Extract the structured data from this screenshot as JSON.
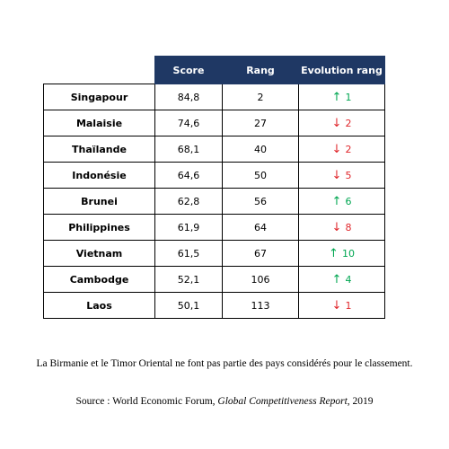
{
  "table": {
    "headers": [
      "Score",
      "Rang",
      "Evolution rang"
    ],
    "rows": [
      {
        "country": "Singapour",
        "score": "84,8",
        "rank": "2",
        "evolution": "1",
        "direction": "up"
      },
      {
        "country": "Malaisie",
        "score": "74,6",
        "rank": "27",
        "evolution": "2",
        "direction": "down"
      },
      {
        "country": "Thaïlande",
        "score": "68,1",
        "rank": "40",
        "evolution": "2",
        "direction": "down"
      },
      {
        "country": "Indonésie",
        "score": "64,6",
        "rank": "50",
        "evolution": "5",
        "direction": "down"
      },
      {
        "country": "Brunei",
        "score": "62,8",
        "rank": "56",
        "evolution": "6",
        "direction": "up"
      },
      {
        "country": "Philippines",
        "score": "61,9",
        "rank": "64",
        "evolution": "8",
        "direction": "down"
      },
      {
        "country": "Vietnam",
        "score": "61,5",
        "rank": "67",
        "evolution": "10",
        "direction": "up"
      },
      {
        "country": "Cambodge",
        "score": "52,1",
        "rank": "106",
        "evolution": "4",
        "direction": "up"
      },
      {
        "country": "Laos",
        "score": "50,1",
        "rank": "113",
        "evolution": "1",
        "direction": "down"
      }
    ]
  },
  "colors": {
    "header_bg": "#1f3864",
    "up": "#00a651",
    "down": "#e0262b"
  },
  "icons": {
    "up": "arrow-up-icon",
    "down": "arrow-down-icon"
  },
  "note": "La Birmanie et le Timor Oriental ne font pas partie des pays considérés pour le classement.",
  "source": {
    "prefix": "Source : World Economic Forum, ",
    "title": "Global Competitiveness Report",
    "suffix": ", 2019"
  }
}
